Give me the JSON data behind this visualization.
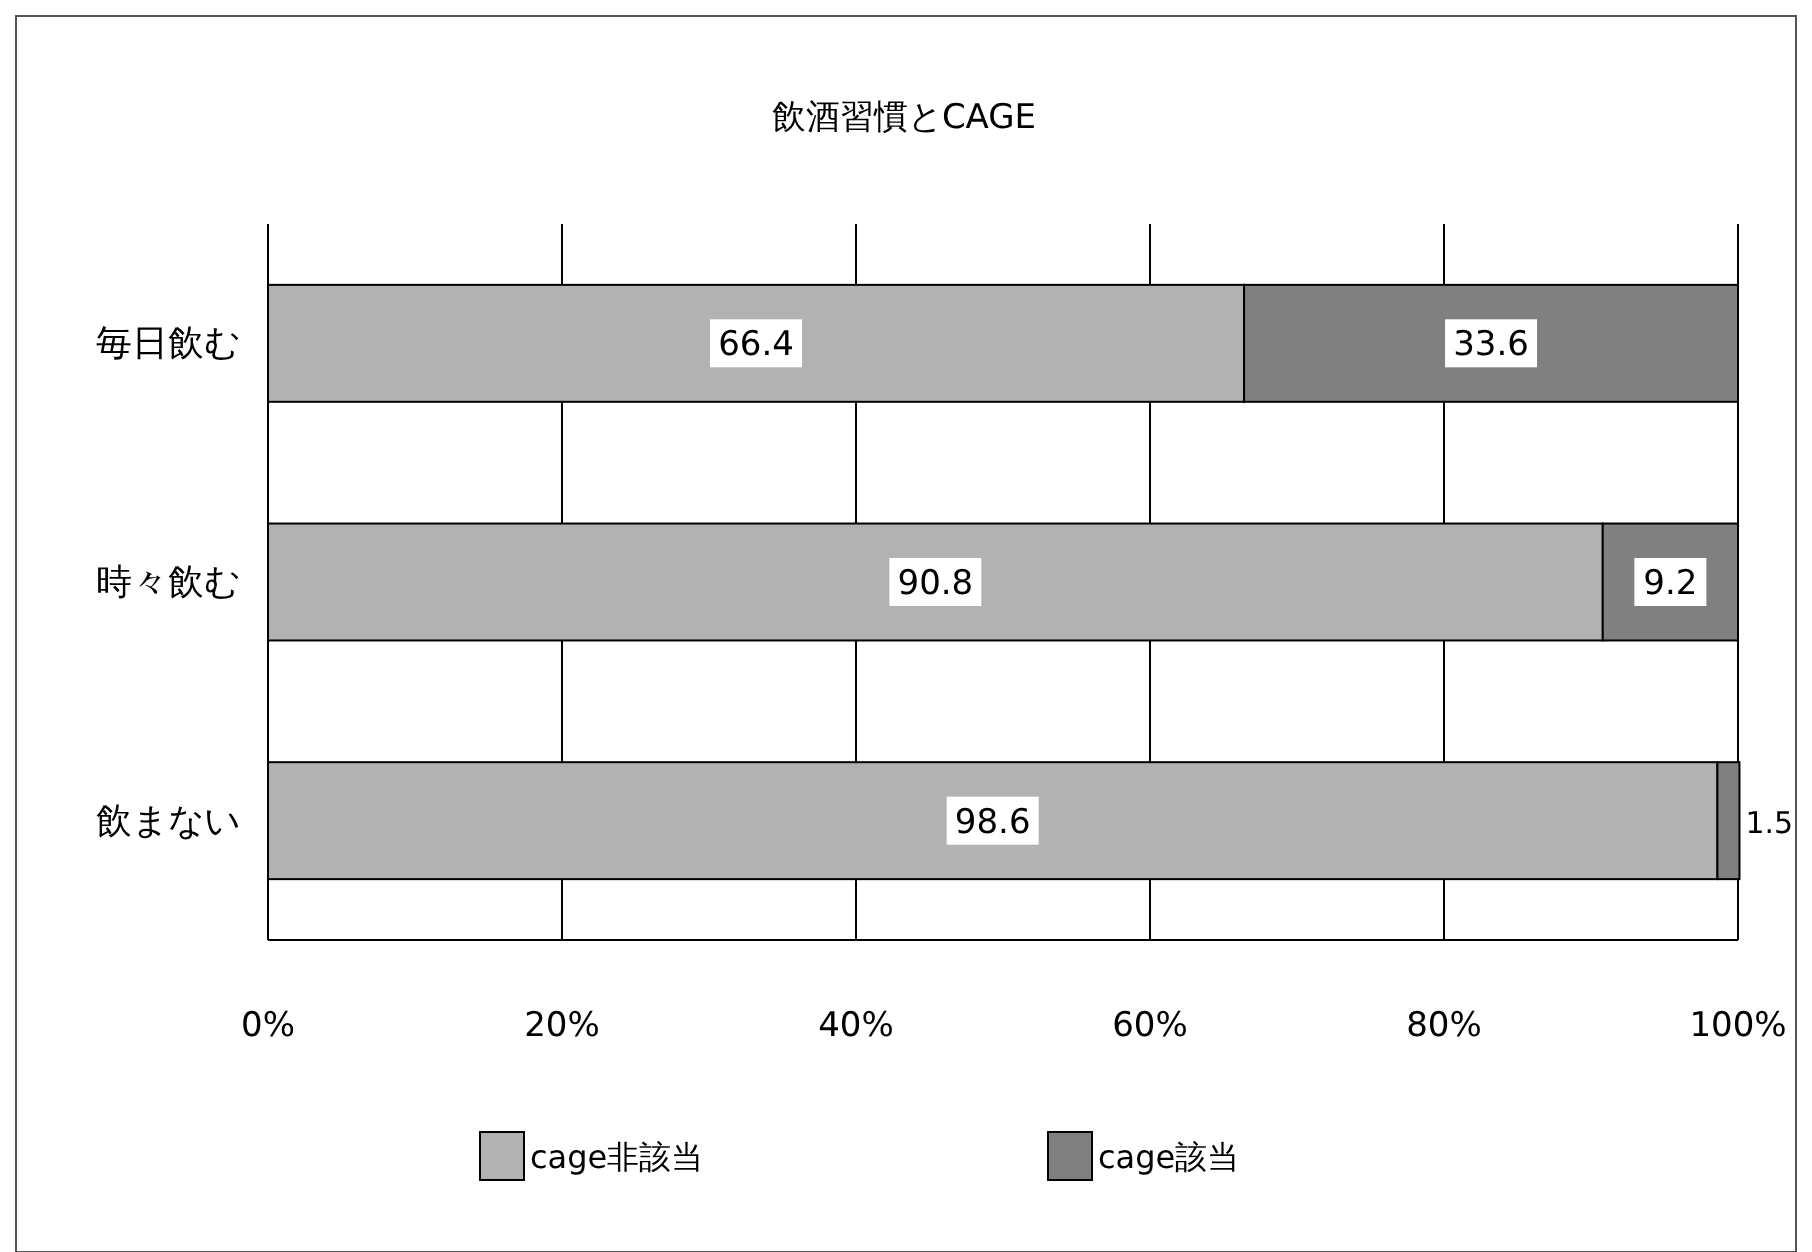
{
  "chart_data": {
    "type": "bar",
    "title": "飲酒習慣とCAGE",
    "orientation": "horizontal",
    "stacked": true,
    "categories": [
      "毎日飲む",
      "時々飲む",
      "飲まない"
    ],
    "series": [
      {
        "name": "cage非該当",
        "color": "#b2b2b2",
        "values": [
          66.4,
          90.8,
          98.6
        ]
      },
      {
        "name": "cage該当",
        "color": "#808080",
        "values": [
          33.6,
          9.2,
          1.5
        ]
      }
    ],
    "xlim": [
      0,
      100
    ],
    "xticks": [
      {
        "value": 0,
        "label": "0%"
      },
      {
        "value": 20,
        "label": "20%"
      },
      {
        "value": 40,
        "label": "40%"
      },
      {
        "value": 60,
        "label": "60%"
      },
      {
        "value": 80,
        "label": "80%"
      },
      {
        "value": 100,
        "label": "100%"
      }
    ],
    "grid": "x",
    "legend": "bottom",
    "data_labels": true
  }
}
